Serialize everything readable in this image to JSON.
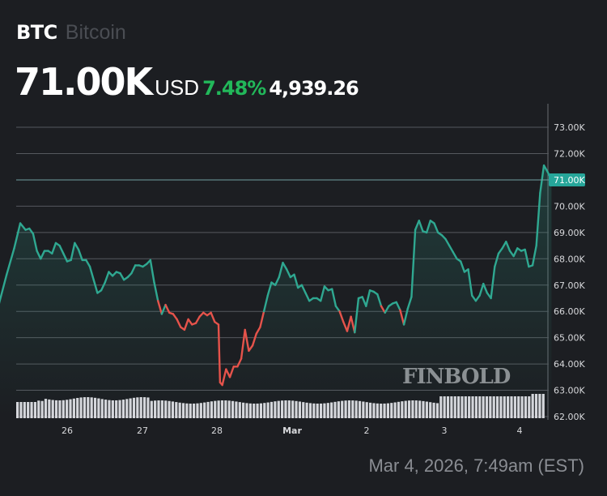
{
  "header": {
    "symbol": "BTC",
    "name": "Bitcoin",
    "price": "71.00K",
    "currency": "USD",
    "change_pct": "7.48%",
    "change_abs": "4,939.26"
  },
  "timestamp": "Mar 4, 2026, 7:49am (EST)",
  "watermark": "FINBOLD",
  "colors": {
    "background": "#1c1e22",
    "up": "#2fa891",
    "down": "#e5534b",
    "positive_text": "#22b85a",
    "volume": "#d6d7dc",
    "grid": "#55585e"
  },
  "chart_data": {
    "type": "line",
    "title": "BTC Bitcoin",
    "xlabel": "",
    "ylabel": "USD",
    "x_tick_labels": [
      "26",
      "27",
      "28",
      "Mar",
      "2",
      "3",
      "4"
    ],
    "y_tick_labels": [
      "62.00K",
      "63.00K",
      "64.00K",
      "65.00K",
      "66.00K",
      "67.00K",
      "68.00K",
      "69.00K",
      "70.00K",
      "71.00K",
      "72.00K",
      "73.00K"
    ],
    "ylim": [
      62000,
      73500
    ],
    "current_price_label": "71.00K",
    "grid": true,
    "series": [
      {
        "name": "BTC/USD",
        "x_days": [
          25.05,
          25.1,
          25.2,
          25.3,
          25.38,
          25.45,
          25.5,
          25.55,
          25.6,
          25.65,
          25.7,
          25.75,
          25.8,
          25.85,
          25.9,
          25.95,
          26.0,
          26.05,
          26.1,
          26.15,
          26.2,
          26.25,
          26.3,
          26.35,
          26.4,
          26.45,
          26.5,
          26.55,
          26.6,
          26.65,
          26.7,
          26.75,
          26.8,
          26.85,
          26.9,
          26.95,
          27.0,
          27.05,
          27.1,
          27.15,
          27.2,
          27.25,
          27.3,
          27.35,
          27.4,
          27.45,
          27.5,
          27.55,
          27.6,
          27.65,
          27.7,
          27.75,
          27.8,
          27.85,
          27.9,
          27.95,
          28.0,
          28.02,
          28.05,
          28.1,
          28.15,
          28.2,
          28.25,
          28.3,
          28.35,
          28.4,
          28.45,
          28.5,
          28.55,
          28.6,
          28.65,
          28.7,
          28.75,
          28.8,
          28.85,
          28.9,
          28.95,
          29.0,
          29.05,
          29.1,
          29.15,
          29.2,
          29.25,
          29.3,
          29.35,
          29.4,
          29.45,
          29.5,
          29.55,
          29.6,
          29.65,
          29.7,
          29.75,
          29.8,
          29.85,
          29.9,
          29.95,
          30.0,
          30.05,
          30.1,
          30.15,
          30.2,
          30.25,
          30.3,
          30.35,
          30.4,
          30.45,
          30.5,
          30.55,
          30.6,
          30.65,
          30.7,
          30.75,
          30.8,
          30.85,
          30.9,
          30.95,
          31.0,
          31.05,
          31.1,
          31.15,
          31.2,
          31.25,
          31.3,
          31.35,
          31.4,
          31.45,
          31.5,
          31.55,
          31.6,
          31.65,
          31.7,
          31.75,
          31.8,
          31.85,
          31.9,
          31.95,
          32.0,
          32.05,
          32.1,
          32.15,
          32.2,
          32.25,
          32.3,
          32.35,
          32.4
        ],
        "values": [
          66100,
          66300,
          67400,
          68400,
          69350,
          69100,
          69150,
          68950,
          68300,
          68000,
          68300,
          68300,
          68200,
          68600,
          68500,
          68200,
          67900,
          67950,
          68600,
          68350,
          67950,
          67950,
          67700,
          67200,
          66700,
          66800,
          67100,
          67500,
          67350,
          67500,
          67450,
          67200,
          67300,
          67450,
          67750,
          67750,
          67700,
          67800,
          67950,
          67100,
          66400,
          65900,
          66250,
          65950,
          65900,
          65700,
          65400,
          65300,
          65700,
          65500,
          65550,
          65800,
          65950,
          65850,
          65950,
          65600,
          65500,
          63300,
          63200,
          63800,
          63500,
          63900,
          63900,
          64200,
          65300,
          64500,
          64700,
          65150,
          65400,
          66000,
          66600,
          67100,
          67000,
          67300,
          67850,
          67600,
          67300,
          67400,
          66900,
          67000,
          66700,
          66400,
          66500,
          66500,
          66400,
          66950,
          66800,
          66850,
          66200,
          66000,
          65600,
          65250,
          65800,
          65200,
          66500,
          66550,
          66200,
          66800,
          66750,
          66650,
          66200,
          65950,
          66200,
          66300,
          66350,
          66050,
          65500,
          66100,
          66550,
          69100,
          69450,
          69050,
          69000,
          69450,
          69350,
          69000,
          68900,
          68750,
          68500,
          68250,
          68000,
          67900,
          67500,
          67600,
          66600,
          66400,
          66600,
          67050,
          66700,
          66500,
          67700,
          68200,
          68400,
          68650,
          68300,
          68100,
          68400,
          68300,
          68350,
          67700,
          67750,
          68500,
          70500,
          71550,
          71300,
          71000
        ]
      },
      {
        "name": "Volume",
        "type": "bar",
        "note": "relative heights only, no axis"
      }
    ]
  }
}
